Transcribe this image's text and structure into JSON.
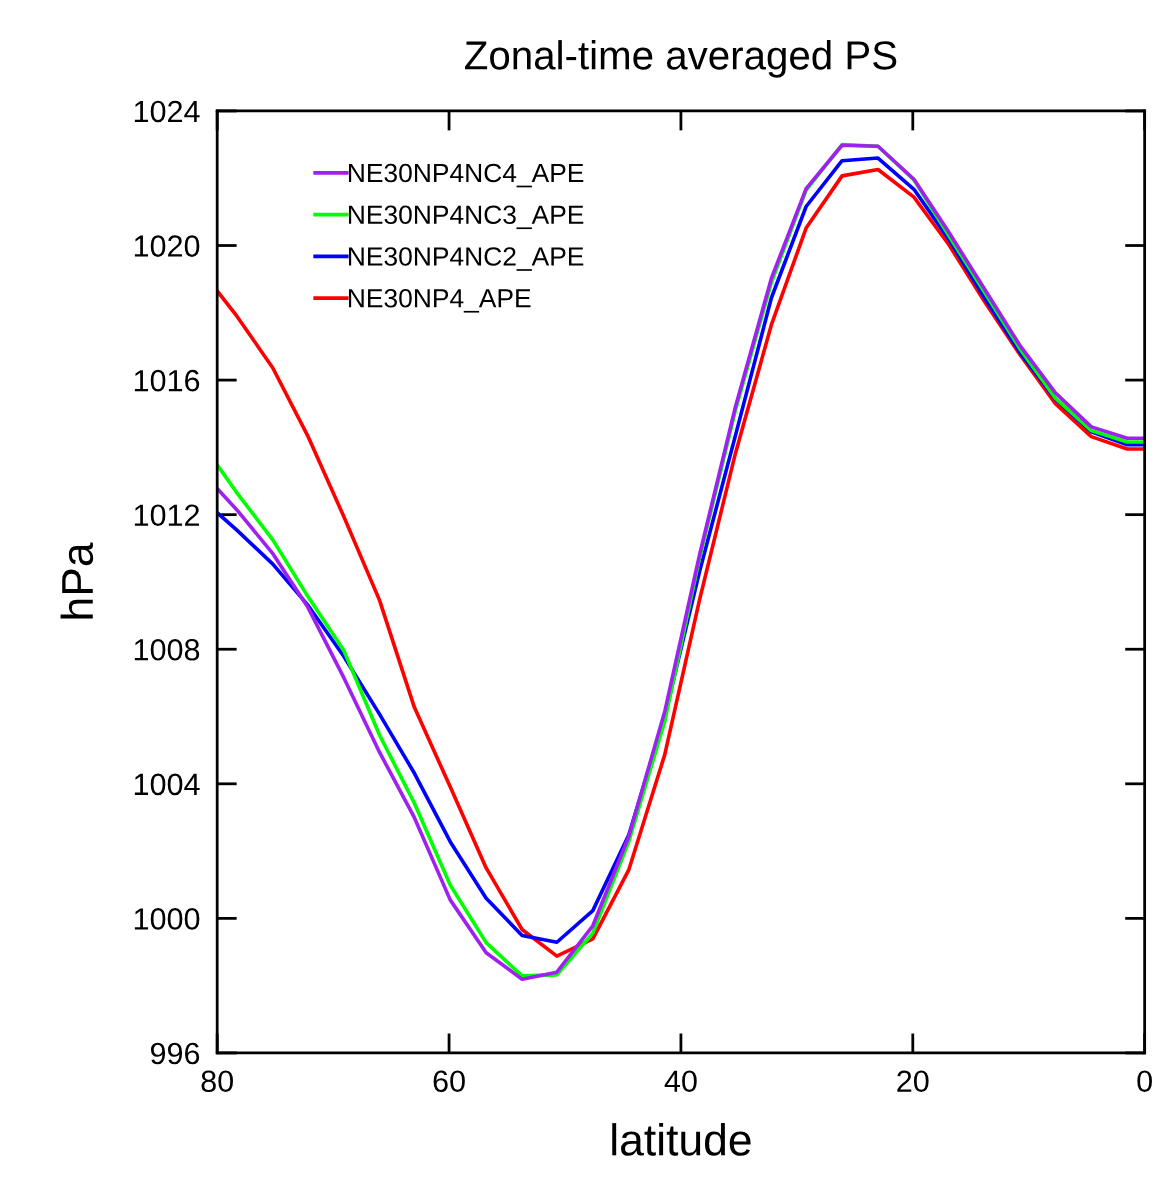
{
  "chart_data": {
    "type": "line",
    "title": "Zonal-time averaged PS",
    "xlabel": "latitude",
    "ylabel": "hPa",
    "x": [
      80,
      78.3,
      75.2,
      72.2,
      69.1,
      66.0,
      63.0,
      59.9,
      56.8,
      53.7,
      50.7,
      47.6,
      44.5,
      41.4,
      38.4,
      35.3,
      32.2,
      29.2,
      26.1,
      23.0,
      19.9,
      16.9,
      13.8,
      10.7,
      7.7,
      4.6,
      1.5,
      0
    ],
    "series": [
      {
        "name": "NE30NP4NC4_APE",
        "color": "#a020f0",
        "values": [
          1012.78,
          1012.14,
          1010.84,
          1009.26,
          1007.17,
          1004.94,
          1003.0,
          1000.55,
          998.98,
          998.19,
          998.4,
          999.78,
          1002.43,
          1006.14,
          1010.8,
          1015.2,
          1019.02,
          1021.69,
          1022.98,
          1022.95,
          1021.97,
          1020.4,
          1018.7,
          1017.0,
          1015.62,
          1014.61,
          1014.27,
          1014.27
        ]
      },
      {
        "name": "NE30NP4NC3_APE",
        "color": "#00ff00",
        "values": [
          1013.48,
          1012.65,
          1011.25,
          1009.58,
          1007.98,
          1005.45,
          1003.43,
          1000.99,
          999.28,
          998.29,
          998.32,
          999.56,
          1002.28,
          1005.85,
          1010.7,
          1015.1,
          1018.9,
          1021.65,
          1023.0,
          1022.95,
          1021.95,
          1020.3,
          1018.6,
          1016.9,
          1015.46,
          1014.5,
          1014.16,
          1014.16
        ]
      },
      {
        "name": "NE30NP4NC2_APE",
        "color": "#0000ff",
        "values": [
          1012.06,
          1011.54,
          1010.53,
          1009.32,
          1007.8,
          1006.07,
          1004.32,
          1002.28,
          1000.6,
          999.49,
          999.29,
          1000.23,
          1002.48,
          1006.0,
          1010.3,
          1014.35,
          1018.44,
          1021.16,
          1022.52,
          1022.6,
          1021.67,
          1020.19,
          1018.44,
          1016.79,
          1015.43,
          1014.46,
          1014.08,
          1014.08
        ]
      },
      {
        "name": "NE30NP4_APE",
        "color": "#ff0000",
        "values": [
          1018.65,
          1017.9,
          1016.36,
          1014.35,
          1011.96,
          1009.46,
          1006.28,
          1003.91,
          1001.5,
          999.67,
          998.88,
          999.39,
          1001.44,
          1004.86,
          1009.46,
          1013.82,
          1017.64,
          1020.52,
          1022.07,
          1022.26,
          1021.44,
          1020.03,
          1018.33,
          1016.73,
          1015.3,
          1014.32,
          1013.95,
          1013.95
        ]
      }
    ],
    "xlim": [
      80,
      0
    ],
    "ylim": [
      996,
      1024
    ],
    "xticks": [
      80,
      60,
      40,
      20,
      0
    ],
    "yticks": [
      996,
      1000,
      1004,
      1008,
      1012,
      1016,
      1020,
      1024
    ],
    "grid": false,
    "legend": "top left",
    "marker": "none",
    "line_style": "solid"
  }
}
